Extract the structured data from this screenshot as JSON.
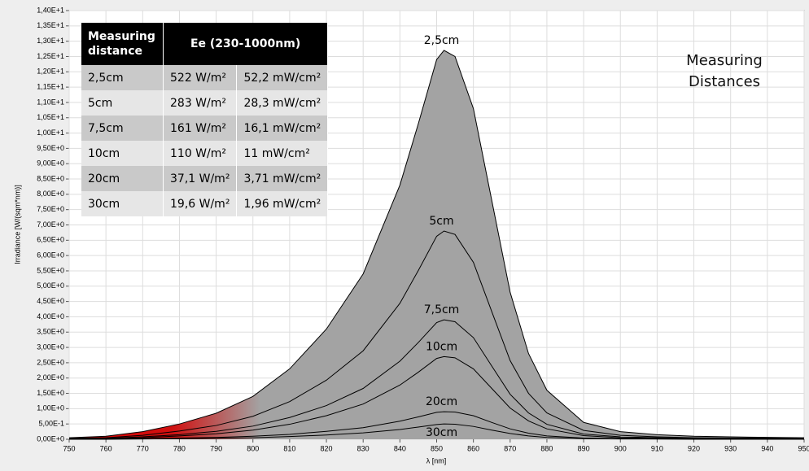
{
  "chart_data": {
    "type": "area",
    "annotation": "Measuring Distances",
    "xlabel": "λ [nm]",
    "ylabel": "Irradiance [W/(sqm*nm)]",
    "x": [
      750,
      760,
      770,
      780,
      790,
      800,
      810,
      820,
      830,
      840,
      845,
      850,
      852,
      855,
      860,
      865,
      870,
      875,
      880,
      890,
      900,
      910,
      920,
      935,
      950
    ],
    "series": [
      {
        "name": "2,5cm",
        "color": "#000000",
        "fill": "#a3a3a3",
        "values": [
          0.05,
          0.1,
          0.25,
          0.5,
          0.85,
          1.4,
          2.3,
          3.6,
          5.4,
          8.3,
          10.3,
          12.4,
          12.7,
          12.5,
          10.8,
          7.8,
          4.8,
          2.8,
          1.6,
          0.55,
          0.25,
          0.15,
          0.1,
          0.07,
          0.05
        ]
      },
      {
        "name": "5cm",
        "color": "#000000",
        "values": [
          0.03,
          0.05,
          0.13,
          0.27,
          0.45,
          0.75,
          1.23,
          1.93,
          2.89,
          4.44,
          5.51,
          6.63,
          6.8,
          6.69,
          5.78,
          4.17,
          2.57,
          1.5,
          0.86,
          0.29,
          0.13,
          0.08,
          0.05,
          0.04,
          0.03
        ]
      },
      {
        "name": "7,5cm",
        "color": "#000000",
        "values": [
          0.02,
          0.03,
          0.08,
          0.15,
          0.26,
          0.43,
          0.71,
          1.1,
          1.66,
          2.55,
          3.16,
          3.81,
          3.9,
          3.84,
          3.32,
          2.39,
          1.47,
          0.86,
          0.49,
          0.17,
          0.08,
          0.05,
          0.03,
          0.02,
          0.02
        ]
      },
      {
        "name": "10cm",
        "color": "#000000",
        "values": [
          0.01,
          0.02,
          0.05,
          0.11,
          0.18,
          0.3,
          0.49,
          0.77,
          1.15,
          1.77,
          2.19,
          2.64,
          2.7,
          2.66,
          2.3,
          1.66,
          1.02,
          0.6,
          0.34,
          0.12,
          0.05,
          0.03,
          0.02,
          0.01,
          0.01
        ]
      },
      {
        "name": "20cm",
        "color": "#000000",
        "values": [
          0,
          0.01,
          0.02,
          0.04,
          0.06,
          0.1,
          0.16,
          0.26,
          0.38,
          0.59,
          0.73,
          0.88,
          0.9,
          0.89,
          0.77,
          0.55,
          0.34,
          0.2,
          0.11,
          0.04,
          0.02,
          0.01,
          0.01,
          0,
          0
        ]
      },
      {
        "name": "30cm",
        "color": "#000000",
        "values": [
          0,
          0,
          0.01,
          0.02,
          0.03,
          0.05,
          0.09,
          0.14,
          0.21,
          0.32,
          0.4,
          0.48,
          0.5,
          0.49,
          0.42,
          0.3,
          0.19,
          0.11,
          0.06,
          0.02,
          0.01,
          0.01,
          0,
          0,
          0
        ]
      }
    ],
    "xlim": [
      750,
      950
    ],
    "xticks": [
      750,
      760,
      770,
      780,
      790,
      800,
      810,
      820,
      830,
      840,
      850,
      860,
      870,
      880,
      890,
      900,
      910,
      920,
      930,
      940,
      950
    ],
    "ylim": [
      0,
      14
    ],
    "yticks": [
      {
        "value": 0,
        "label": "0,00E+0"
      },
      {
        "value": 0.5,
        "label": "5,00E-1"
      },
      {
        "value": 1,
        "label": "1,00E+0"
      },
      {
        "value": 1.5,
        "label": "1,50E+0"
      },
      {
        "value": 2,
        "label": "2,00E+0"
      },
      {
        "value": 2.5,
        "label": "2,50E+0"
      },
      {
        "value": 3,
        "label": "3,00E+0"
      },
      {
        "value": 3.5,
        "label": "3,50E+0"
      },
      {
        "value": 4,
        "label": "4,00E+0"
      },
      {
        "value": 4.5,
        "label": "4,50E+0"
      },
      {
        "value": 5,
        "label": "5,00E+0"
      },
      {
        "value": 5.5,
        "label": "5,50E+0"
      },
      {
        "value": 6,
        "label": "6,00E+0"
      },
      {
        "value": 6.5,
        "label": "6,50E+0"
      },
      {
        "value": 7,
        "label": "7,00E+0"
      },
      {
        "value": 7.5,
        "label": "7,50E+0"
      },
      {
        "value": 8,
        "label": "8,00E+0"
      },
      {
        "value": 8.5,
        "label": "8,50E+0"
      },
      {
        "value": 9,
        "label": "9,00E+0"
      },
      {
        "value": 9.5,
        "label": "9,50E+0"
      },
      {
        "value": 10,
        "label": "1,00E+1"
      },
      {
        "value": 10.5,
        "label": "1,05E+1"
      },
      {
        "value": 11,
        "label": "1,10E+1"
      },
      {
        "value": 11.5,
        "label": "1,15E+1"
      },
      {
        "value": 12,
        "label": "1,20E+1"
      },
      {
        "value": 12.5,
        "label": "1,25E+1"
      },
      {
        "value": 13,
        "label": "1,30E+1"
      },
      {
        "value": 13.5,
        "label": "1,35E+1"
      },
      {
        "value": 14,
        "label": "1,40E+1"
      }
    ],
    "grid": true,
    "table": {
      "header": [
        "Measuring distance",
        "Ee (230-1000nm)"
      ],
      "rows": [
        [
          "2,5cm",
          "522 W/m²",
          "52,2 mW/cm²"
        ],
        [
          "5cm",
          "283 W/m²",
          "28,3 mW/cm²"
        ],
        [
          "7,5cm",
          "161 W/m²",
          "16,1 mW/cm²"
        ],
        [
          "10cm",
          "110 W/m²",
          "11 mW/cm²"
        ],
        [
          "20cm",
          "37,1 W/m²",
          "3,71 mW/cm²"
        ],
        [
          "30cm",
          "19,6 W/m²",
          "1,96 mW/cm²"
        ]
      ]
    }
  }
}
